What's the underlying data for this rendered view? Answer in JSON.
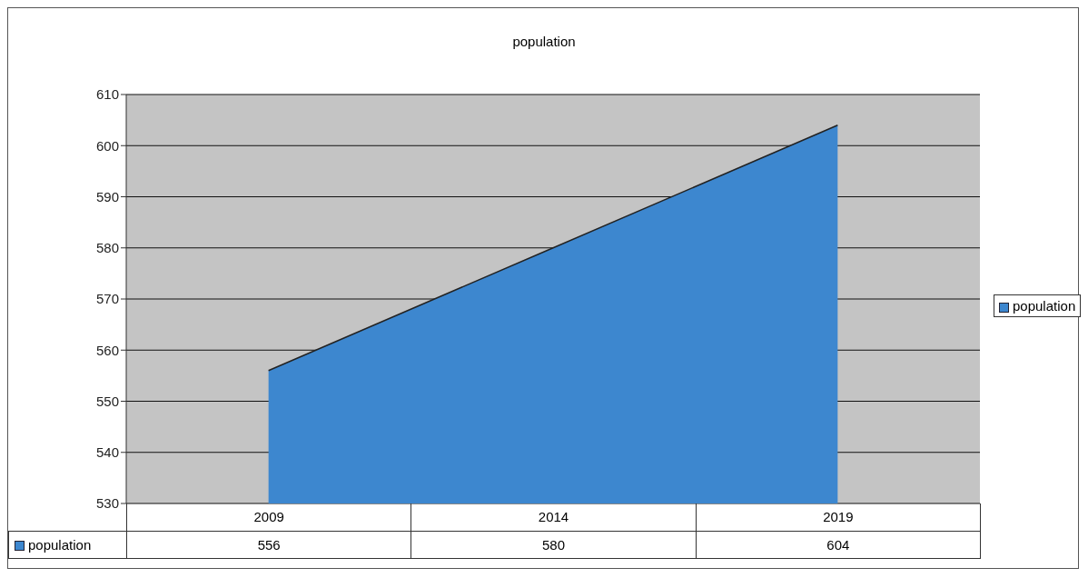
{
  "chart_data": {
    "type": "area",
    "title": "population",
    "categories": [
      "2009",
      "2014",
      "2019"
    ],
    "series": [
      {
        "name": "population",
        "color": "#3d87cf",
        "values": [
          556,
          580,
          604
        ]
      }
    ],
    "ylim": [
      530,
      610
    ],
    "yticks": [
      530,
      540,
      550,
      560,
      570,
      580,
      590,
      600,
      610
    ],
    "grid": "y",
    "legend": "right",
    "data_labels": true
  }
}
